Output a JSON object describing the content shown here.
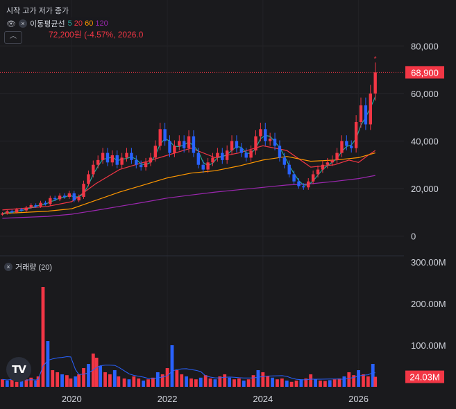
{
  "legend": {
    "ohlc_labels": "시작 고가 저가 종가",
    "ma_title": "이동평균선",
    "ma_periods": [
      {
        "label": "5",
        "color": "#26a69a"
      },
      {
        "label": "20",
        "color": "#f23645"
      },
      {
        "label": "60",
        "color": "#ff9800"
      },
      {
        "label": "120",
        "color": "#9c27b0"
      }
    ],
    "volume_title": "거래량 (20)",
    "collapse_icon": "chevron-up-icon"
  },
  "annotation": "72,200원 (-4.57%, 2026.0",
  "price_badge": "68,900",
  "volume_badge": "24.03M",
  "logo_text": "TV",
  "colors": {
    "up": "#f23645",
    "down": "#2962ff",
    "bg": "#1a1a1d",
    "badge": "#f23645"
  },
  "chart_data": [
    {
      "type": "candlestick",
      "title": "",
      "price_axis_ticks": [
        "80,000",
        "60,000",
        "40,000",
        "20,000",
        "0"
      ],
      "price_axis_values": [
        80000,
        60000,
        40000,
        20000,
        0
      ],
      "ylim": [
        -8000,
        93500
      ],
      "time_axis_ticks": [
        "2020",
        "2022",
        "2024",
        "2026"
      ],
      "time_axis_years": [
        2020,
        2022,
        2024,
        2026
      ],
      "xlim": [
        2018.5,
        2026.95
      ],
      "last_price": 68900,
      "period_high": 72200,
      "closes": [
        [
          2018.55,
          9500
        ],
        [
          2018.65,
          10500
        ],
        [
          2018.75,
          10000
        ],
        [
          2018.85,
          11200
        ],
        [
          2018.95,
          10800
        ],
        [
          2019.05,
          12000
        ],
        [
          2019.15,
          13000
        ],
        [
          2019.25,
          12500
        ],
        [
          2019.35,
          14000
        ],
        [
          2019.45,
          13500
        ],
        [
          2019.55,
          16000
        ],
        [
          2019.65,
          15500
        ],
        [
          2019.75,
          17000
        ],
        [
          2019.85,
          16500
        ],
        [
          2019.95,
          18000
        ],
        [
          2020.05,
          15000
        ],
        [
          2020.15,
          16500
        ],
        [
          2020.25,
          22000
        ],
        [
          2020.35,
          26000
        ],
        [
          2020.45,
          30000
        ],
        [
          2020.55,
          32000
        ],
        [
          2020.65,
          35000
        ],
        [
          2020.75,
          31000
        ],
        [
          2020.85,
          34000
        ],
        [
          2020.95,
          30000
        ],
        [
          2021.05,
          33000
        ],
        [
          2021.15,
          35000
        ],
        [
          2021.25,
          32000
        ],
        [
          2021.35,
          30000
        ],
        [
          2021.45,
          29000
        ],
        [
          2021.55,
          31000
        ],
        [
          2021.65,
          33000
        ],
        [
          2021.75,
          38000
        ],
        [
          2021.85,
          45000
        ],
        [
          2021.95,
          40000
        ],
        [
          2022.05,
          35000
        ],
        [
          2022.15,
          38000
        ],
        [
          2022.25,
          40000
        ],
        [
          2022.35,
          37000
        ],
        [
          2022.45,
          42000
        ],
        [
          2022.55,
          35000
        ],
        [
          2022.65,
          30000
        ],
        [
          2022.75,
          28000
        ],
        [
          2022.85,
          31000
        ],
        [
          2022.95,
          33000
        ],
        [
          2023.05,
          35000
        ],
        [
          2023.15,
          32000
        ],
        [
          2023.25,
          36000
        ],
        [
          2023.35,
          40000
        ],
        [
          2023.45,
          37000
        ],
        [
          2023.55,
          35000
        ],
        [
          2023.65,
          33000
        ],
        [
          2023.75,
          36000
        ],
        [
          2023.85,
          42000
        ],
        [
          2023.95,
          45000
        ],
        [
          2024.05,
          40000
        ],
        [
          2024.15,
          41000
        ],
        [
          2024.25,
          38000
        ],
        [
          2024.35,
          33000
        ],
        [
          2024.45,
          30000
        ],
        [
          2024.55,
          26000
        ],
        [
          2024.65,
          23000
        ],
        [
          2024.75,
          21000
        ],
        [
          2024.85,
          20500
        ],
        [
          2024.95,
          23000
        ],
        [
          2025.05,
          26000
        ],
        [
          2025.15,
          28000
        ],
        [
          2025.25,
          30000
        ],
        [
          2025.35,
          31000
        ],
        [
          2025.45,
          32000
        ],
        [
          2025.55,
          35000
        ],
        [
          2025.65,
          40000
        ],
        [
          2025.75,
          38000
        ],
        [
          2025.85,
          37000
        ],
        [
          2025.95,
          48000
        ],
        [
          2026.05,
          55000
        ],
        [
          2026.15,
          47000
        ],
        [
          2026.25,
          60000
        ],
        [
          2026.35,
          68900
        ]
      ],
      "moving_averages": [
        {
          "period": 20,
          "color": "#f23645",
          "values": [
            [
              2018.55,
              11000
            ],
            [
              2019.5,
              12500
            ],
            [
              2020.0,
              14500
            ],
            [
              2020.5,
              22000
            ],
            [
              2021.0,
              28000
            ],
            [
              2021.5,
              31000
            ],
            [
              2022.0,
              34000
            ],
            [
              2022.5,
              37000
            ],
            [
              2023.0,
              33000
            ],
            [
              2023.5,
              35000
            ],
            [
              2024.0,
              38000
            ],
            [
              2024.5,
              36000
            ],
            [
              2025.0,
              29000
            ],
            [
              2025.5,
              30000
            ],
            [
              2025.8,
              32000
            ],
            [
              2026.0,
              31000
            ],
            [
              2026.2,
              34000
            ],
            [
              2026.35,
              36000
            ]
          ]
        },
        {
          "period": 60,
          "color": "#ff9800",
          "values": [
            [
              2018.55,
              9500
            ],
            [
              2019.5,
              10500
            ],
            [
              2020.0,
              11500
            ],
            [
              2020.5,
              15000
            ],
            [
              2021.0,
              18500
            ],
            [
              2021.5,
              21500
            ],
            [
              2022.0,
              24500
            ],
            [
              2022.5,
              26500
            ],
            [
              2023.0,
              27500
            ],
            [
              2023.5,
              29500
            ],
            [
              2024.0,
              32000
            ],
            [
              2024.5,
              33500
            ],
            [
              2025.0,
              31500
            ],
            [
              2025.5,
              32000
            ],
            [
              2026.0,
              33000
            ],
            [
              2026.35,
              35000
            ]
          ]
        },
        {
          "period": 120,
          "color": "#9c27b0",
          "values": [
            [
              2018.55,
              7500
            ],
            [
              2019.5,
              8300
            ],
            [
              2020.0,
              9200
            ],
            [
              2020.5,
              10800
            ],
            [
              2021.0,
              12500
            ],
            [
              2021.5,
              14200
            ],
            [
              2022.0,
              16000
            ],
            [
              2022.5,
              17300
            ],
            [
              2023.0,
              18500
            ],
            [
              2023.5,
              19500
            ],
            [
              2024.0,
              20500
            ],
            [
              2024.5,
              21500
            ],
            [
              2025.0,
              22000
            ],
            [
              2025.5,
              23000
            ],
            [
              2026.0,
              24200
            ],
            [
              2026.35,
              25500
            ]
          ]
        }
      ]
    },
    {
      "type": "bar",
      "title": "거래량 (20)",
      "volume_axis_ticks": [
        "300.00M",
        "200.00M",
        "100.00M"
      ],
      "volume_axis_values": [
        300,
        200,
        100
      ],
      "unit": "M",
      "ylim": [
        0,
        310
      ],
      "last_volume_M": 24.03,
      "values_M": [
        [
          2018.55,
          18
        ],
        [
          2018.65,
          15
        ],
        [
          2018.75,
          20
        ],
        [
          2018.85,
          12
        ],
        [
          2018.95,
          14
        ],
        [
          2019.05,
          18
        ],
        [
          2019.15,
          22
        ],
        [
          2019.25,
          15
        ],
        [
          2019.3,
          25
        ],
        [
          2019.4,
          240
        ],
        [
          2019.5,
          110
        ],
        [
          2019.6,
          40
        ],
        [
          2019.7,
          35
        ],
        [
          2019.8,
          30
        ],
        [
          2019.9,
          28
        ],
        [
          2019.98,
          20
        ],
        [
          2020.08,
          25
        ],
        [
          2020.15,
          30
        ],
        [
          2020.25,
          45
        ],
        [
          2020.35,
          55
        ],
        [
          2020.45,
          80
        ],
        [
          2020.52,
          70
        ],
        [
          2020.6,
          50
        ],
        [
          2020.7,
          35
        ],
        [
          2020.8,
          30
        ],
        [
          2020.9,
          40
        ],
        [
          2020.98,
          25
        ],
        [
          2021.1,
          20
        ],
        [
          2021.2,
          18
        ],
        [
          2021.3,
          25
        ],
        [
          2021.4,
          20
        ],
        [
          2021.5,
          15
        ],
        [
          2021.6,
          18
        ],
        [
          2021.7,
          22
        ],
        [
          2021.8,
          35
        ],
        [
          2021.9,
          30
        ],
        [
          2022.0,
          45
        ],
        [
          2022.1,
          100
        ],
        [
          2022.2,
          40
        ],
        [
          2022.3,
          30
        ],
        [
          2022.4,
          25
        ],
        [
          2022.5,
          20
        ],
        [
          2022.6,
          18
        ],
        [
          2022.7,
          22
        ],
        [
          2022.8,
          28
        ],
        [
          2022.9,
          20
        ],
        [
          2023.0,
          18
        ],
        [
          2023.1,
          25
        ],
        [
          2023.2,
          30
        ],
        [
          2023.3,
          22
        ],
        [
          2023.4,
          18
        ],
        [
          2023.5,
          20
        ],
        [
          2023.6,
          15
        ],
        [
          2023.7,
          18
        ],
        [
          2023.8,
          28
        ],
        [
          2023.9,
          40
        ],
        [
          2024.0,
          35
        ],
        [
          2024.1,
          25
        ],
        [
          2024.2,
          22
        ],
        [
          2024.3,
          18
        ],
        [
          2024.4,
          20
        ],
        [
          2024.5,
          15
        ],
        [
          2024.6,
          12
        ],
        [
          2024.7,
          15
        ],
        [
          2024.8,
          18
        ],
        [
          2024.9,
          20
        ],
        [
          2025.0,
          30
        ],
        [
          2025.1,
          18
        ],
        [
          2025.2,
          15
        ],
        [
          2025.3,
          14
        ],
        [
          2025.4,
          16
        ],
        [
          2025.5,
          18
        ],
        [
          2025.6,
          20
        ],
        [
          2025.7,
          25
        ],
        [
          2025.8,
          35
        ],
        [
          2025.9,
          28
        ],
        [
          2026.0,
          40
        ],
        [
          2026.1,
          30
        ],
        [
          2026.2,
          25
        ],
        [
          2026.3,
          55
        ],
        [
          2026.35,
          24.03
        ]
      ]
    }
  ]
}
